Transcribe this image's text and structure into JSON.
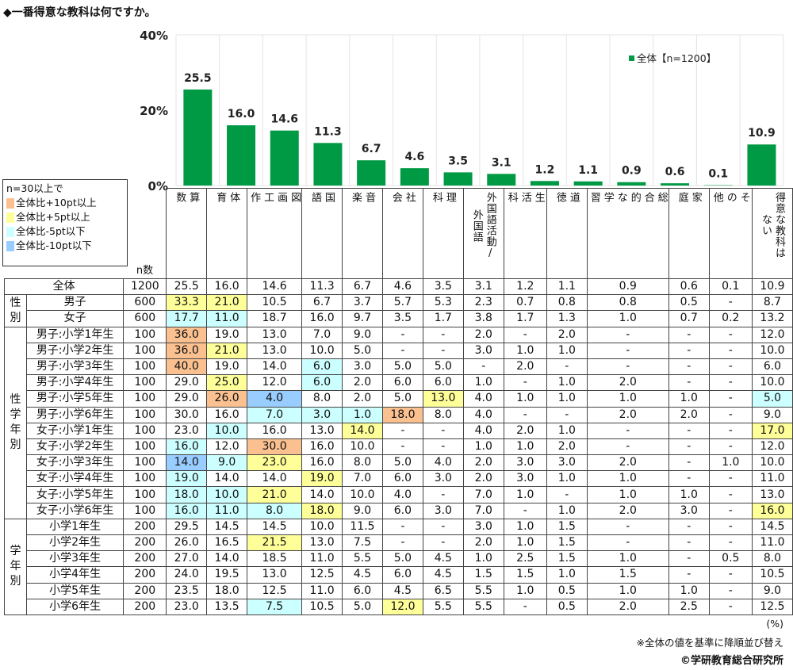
{
  "title": "◆一番得意な教科は何ですか。",
  "chart_data": {
    "type": "bar",
    "categories": [
      "算数",
      "体育",
      "図画工作",
      "国語",
      "音楽",
      "社会",
      "理科",
      "外国語活動/外国語",
      "生活科",
      "道徳",
      "総合的な学習",
      "家庭",
      "その他",
      "得意な教科はない"
    ],
    "series": [
      {
        "name": "全体【n=1200】",
        "values": [
          25.5,
          16.0,
          14.6,
          11.3,
          6.7,
          4.6,
          3.5,
          3.1,
          1.2,
          1.1,
          0.9,
          0.6,
          0.1,
          10.9
        ]
      }
    ],
    "value_labels": [
      "25.5",
      "16.0",
      "14.6",
      "11.3",
      "6.7",
      "4.6",
      "3.5",
      "3.1",
      "1.2",
      "1.1",
      "0.9",
      "0.6",
      "0.1",
      "10.9"
    ],
    "ylim": [
      0,
      40
    ],
    "yticks": [
      "0%",
      "20%",
      "40%"
    ],
    "ytick_values": [
      0,
      20,
      40
    ],
    "legend_position": "top-right",
    "grid": "vertical category separators",
    "bar_color": "#009944"
  },
  "legend": {
    "heading": "n=30以上で",
    "items": [
      {
        "label": "全体比+10pt以上",
        "code": "o",
        "color": "#fac090"
      },
      {
        "label": "全体比+5pt以上",
        "code": "y",
        "color": "#ffff99"
      },
      {
        "label": "全体比-5pt以下",
        "code": "c",
        "color": "#ccffff"
      },
      {
        "label": "全体比-10pt以下",
        "code": "b",
        "color": "#99ccff"
      }
    ]
  },
  "table": {
    "n_header": "n数",
    "headers": [
      "算\n数",
      "体\n育",
      "図\n画\n工\n作",
      "国\n語",
      "音\n楽",
      "社\n会",
      "理\n科",
      "外国語活動/\n外国語",
      "生\n活\n科",
      "道\n徳",
      "総\n合\n的\nな\n学\n習",
      "家\n庭",
      "そ\nの\n他",
      "得意な教科は\nない"
    ],
    "groups": [
      {
        "label": "性\n別",
        "start": 1,
        "span": 2
      },
      {
        "label": "性\n学\n年\n別",
        "start": 3,
        "span": 12
      },
      {
        "label": "学\n年\n別",
        "start": 15,
        "span": 6
      }
    ],
    "rows": [
      {
        "label": "全体",
        "n": "1200",
        "values": [
          "25.5",
          "16.0",
          "14.6",
          "11.3",
          "6.7",
          "4.6",
          "3.5",
          "3.1",
          "1.2",
          "1.1",
          "0.9",
          "0.6",
          "0.1",
          "10.9"
        ],
        "hl": "--------------"
      },
      {
        "label": "男子",
        "n": "600",
        "values": [
          "33.3",
          "21.0",
          "10.5",
          "6.7",
          "3.7",
          "5.7",
          "5.3",
          "2.3",
          "0.7",
          "0.8",
          "0.8",
          "0.5",
          "-",
          "8.7"
        ],
        "hl": "yy------------"
      },
      {
        "label": "女子",
        "n": "600",
        "values": [
          "17.7",
          "11.0",
          "18.7",
          "16.0",
          "9.7",
          "3.5",
          "1.7",
          "3.8",
          "1.7",
          "1.3",
          "1.0",
          "0.7",
          "0.2",
          "13.2"
        ],
        "hl": "cc------------"
      },
      {
        "label": "男子:小学1年生",
        "n": "100",
        "values": [
          "36.0",
          "19.0",
          "13.0",
          "7.0",
          "9.0",
          "-",
          "-",
          "2.0",
          "-",
          "2.0",
          "-",
          "-",
          "-",
          "12.0"
        ],
        "hl": "o-------------"
      },
      {
        "label": "男子:小学2年生",
        "n": "100",
        "values": [
          "36.0",
          "21.0",
          "13.0",
          "10.0",
          "5.0",
          "-",
          "-",
          "3.0",
          "1.0",
          "1.0",
          "-",
          "-",
          "-",
          "10.0"
        ],
        "hl": "oy------------"
      },
      {
        "label": "男子:小学3年生",
        "n": "100",
        "values": [
          "40.0",
          "19.0",
          "14.0",
          "6.0",
          "3.0",
          "5.0",
          "5.0",
          "-",
          "2.0",
          "-",
          "-",
          "-",
          "-",
          "6.0"
        ],
        "hl": "o--c----------"
      },
      {
        "label": "男子:小学4年生",
        "n": "100",
        "values": [
          "29.0",
          "25.0",
          "12.0",
          "6.0",
          "2.0",
          "6.0",
          "6.0",
          "1.0",
          "-",
          "1.0",
          "2.0",
          "-",
          "-",
          "10.0"
        ],
        "hl": "-y-c----------"
      },
      {
        "label": "男子:小学5年生",
        "n": "100",
        "values": [
          "29.0",
          "26.0",
          "4.0",
          "8.0",
          "2.0",
          "5.0",
          "13.0",
          "4.0",
          "1.0",
          "1.0",
          "1.0",
          "1.0",
          "-",
          "5.0"
        ],
        "hl": "-ob---y------c"
      },
      {
        "label": "男子:小学6年生",
        "n": "100",
        "values": [
          "30.0",
          "16.0",
          "7.0",
          "3.0",
          "1.0",
          "18.0",
          "8.0",
          "4.0",
          "-",
          "-",
          "2.0",
          "2.0",
          "-",
          "9.0"
        ],
        "hl": "--ccco--------"
      },
      {
        "label": "女子:小学1年生",
        "n": "100",
        "values": [
          "23.0",
          "10.0",
          "16.0",
          "13.0",
          "14.0",
          "-",
          "-",
          "4.0",
          "2.0",
          "1.0",
          "-",
          "-",
          "-",
          "17.0"
        ],
        "hl": "-c--y--------y"
      },
      {
        "label": "女子:小学2年生",
        "n": "100",
        "values": [
          "16.0",
          "12.0",
          "30.0",
          "16.0",
          "10.0",
          "-",
          "-",
          "1.0",
          "1.0",
          "2.0",
          "-",
          "-",
          "-",
          "12.0"
        ],
        "hl": "c-o-----------"
      },
      {
        "label": "女子:小学3年生",
        "n": "100",
        "values": [
          "14.0",
          "9.0",
          "23.0",
          "16.0",
          "8.0",
          "5.0",
          "4.0",
          "2.0",
          "3.0",
          "3.0",
          "2.0",
          "-",
          "1.0",
          "10.0"
        ],
        "hl": "bcy-----------"
      },
      {
        "label": "女子:小学4年生",
        "n": "100",
        "values": [
          "19.0",
          "14.0",
          "14.0",
          "19.0",
          "7.0",
          "6.0",
          "3.0",
          "2.0",
          "3.0",
          "1.0",
          "1.0",
          "-",
          "-",
          "11.0"
        ],
        "hl": "c--y----------"
      },
      {
        "label": "女子:小学5年生",
        "n": "100",
        "values": [
          "18.0",
          "10.0",
          "21.0",
          "14.0",
          "10.0",
          "4.0",
          "-",
          "7.0",
          "1.0",
          "-",
          "1.0",
          "1.0",
          "-",
          "13.0"
        ],
        "hl": "ccy-----------"
      },
      {
        "label": "女子:小学6年生",
        "n": "100",
        "values": [
          "16.0",
          "11.0",
          "8.0",
          "18.0",
          "9.0",
          "6.0",
          "3.0",
          "7.0",
          "-",
          "1.0",
          "2.0",
          "3.0",
          "-",
          "16.0"
        ],
        "hl": "cccy---------y"
      },
      {
        "label": "小学1年生",
        "n": "200",
        "values": [
          "29.5",
          "14.5",
          "14.5",
          "10.0",
          "11.5",
          "-",
          "-",
          "3.0",
          "1.0",
          "1.5",
          "-",
          "-",
          "-",
          "14.5"
        ],
        "hl": "--------------"
      },
      {
        "label": "小学2年生",
        "n": "200",
        "values": [
          "26.0",
          "16.5",
          "21.5",
          "13.0",
          "7.5",
          "-",
          "-",
          "2.0",
          "1.0",
          "1.5",
          "-",
          "-",
          "-",
          "11.0"
        ],
        "hl": "--y-----------"
      },
      {
        "label": "小学3年生",
        "n": "200",
        "values": [
          "27.0",
          "14.0",
          "18.5",
          "11.0",
          "5.5",
          "5.0",
          "4.5",
          "1.0",
          "2.5",
          "1.5",
          "1.0",
          "-",
          "0.5",
          "8.0"
        ],
        "hl": "--------------"
      },
      {
        "label": "小学4年生",
        "n": "200",
        "values": [
          "24.0",
          "19.5",
          "13.0",
          "12.5",
          "4.5",
          "6.0",
          "4.5",
          "1.5",
          "1.5",
          "1.0",
          "1.5",
          "-",
          "-",
          "10.5"
        ],
        "hl": "--------------"
      },
      {
        "label": "小学5年生",
        "n": "200",
        "values": [
          "23.5",
          "18.0",
          "12.5",
          "11.0",
          "6.0",
          "4.5",
          "6.5",
          "5.5",
          "1.0",
          "0.5",
          "1.0",
          "1.0",
          "-",
          "9.0"
        ],
        "hl": "--------------"
      },
      {
        "label": "小学6年生",
        "n": "200",
        "values": [
          "23.0",
          "13.5",
          "7.5",
          "10.5",
          "5.0",
          "12.0",
          "5.5",
          "5.5",
          "-",
          "0.5",
          "2.0",
          "2.5",
          "-",
          "12.5"
        ],
        "hl": "--c--y--------"
      }
    ]
  },
  "footer": {
    "unit": "(%)",
    "note": "※全体の値を基準に降順並び替え",
    "copyright": "©学研教育総合研究所"
  }
}
